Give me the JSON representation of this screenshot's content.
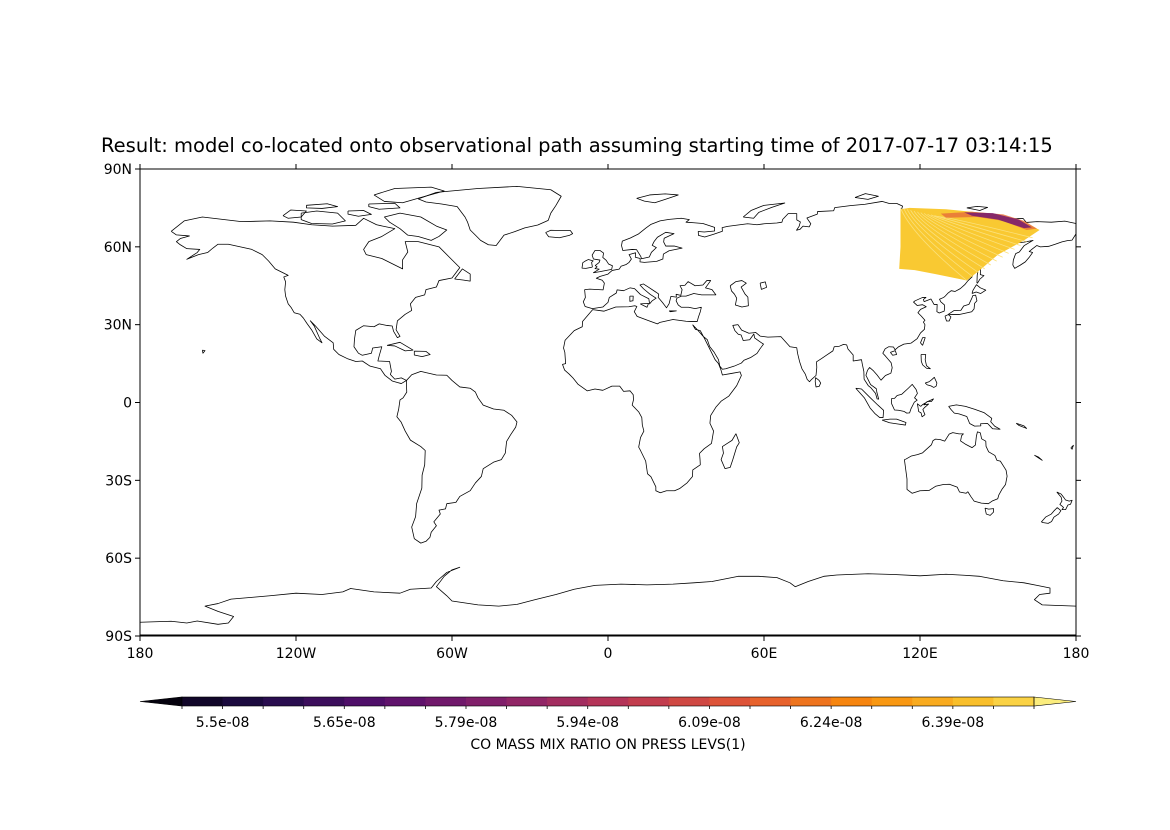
{
  "title": "Result: model co-located onto observational path assuming starting time of 2017-07-17 03:14:15",
  "map": {
    "projection": "PlateCarree",
    "lon_range": [
      -180,
      180
    ],
    "lat_range": [
      -90,
      90
    ],
    "y_ticks": [
      {
        "lat": 90,
        "label": "90N"
      },
      {
        "lat": 60,
        "label": "60N"
      },
      {
        "lat": 30,
        "label": "30N"
      },
      {
        "lat": 0,
        "label": "0"
      },
      {
        "lat": -30,
        "label": "30S"
      },
      {
        "lat": -60,
        "label": "60S"
      },
      {
        "lat": -90,
        "label": "90S"
      }
    ],
    "x_ticks": [
      {
        "lon": -180,
        "label": "180"
      },
      {
        "lon": -120,
        "label": "120W"
      },
      {
        "lon": -60,
        "label": "60W"
      },
      {
        "lon": 0,
        "label": "0"
      },
      {
        "lon": 60,
        "label": "60E"
      },
      {
        "lon": 120,
        "label": "120E"
      },
      {
        "lon": 180,
        "label": "180"
      }
    ],
    "coastline_color": "#000000",
    "swath": {
      "lon_range": [
        112,
        166
      ],
      "lat_range": [
        47,
        75
      ],
      "fill_color": "#f9c932",
      "high_value_color": "#7b1f6e"
    }
  },
  "colorbar": {
    "label": "CO MASS MIX RATIO ON PRESS LEVS(1)",
    "colormap": "inferno",
    "extend": "both",
    "n_bins": 21,
    "tick_labels": [
      "5.5e-08",
      "5.65e-08",
      "5.79e-08",
      "5.94e-08",
      "6.09e-08",
      "6.24e-08",
      "6.39e-08"
    ],
    "tick_bin_index": [
      1,
      4,
      7,
      10,
      13,
      16,
      19
    ]
  }
}
